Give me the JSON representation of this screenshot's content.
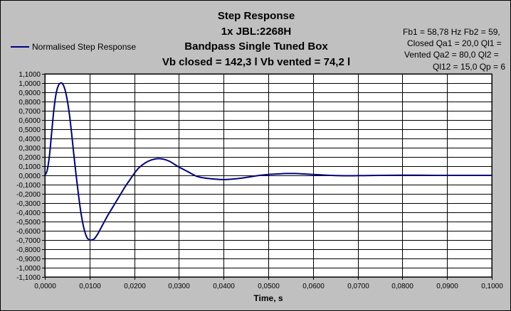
{
  "title": {
    "line1": "Step Response",
    "line2": "1x JBL:2268H",
    "line3": "Bandpass Single Tuned Box",
    "line4": "Vb closed = 142,3 l     Vb vented = 74,2 l"
  },
  "params": {
    "line1": "Fb1 = 58,78 Hz   Fb2 = 59,",
    "line2": "Closed Qa1 = 20,0   Ql1 =",
    "line3": "Vented Qa2 = 80,0   Ql2 =",
    "line4": "Ql12 = 15,0   Qp = 6"
  },
  "colors": {
    "series": "#000080",
    "background": "#c0c0c0",
    "plot_area": "#ffffff",
    "grid": "#000000"
  },
  "chart_data": {
    "type": "line",
    "xlabel": "Time, s",
    "ylabel": "",
    "xlim": [
      0,
      0.1
    ],
    "ylim": [
      -1.1,
      1.1
    ],
    "grid": true,
    "legend_position": "top-left",
    "x_ticks": [
      "0,0000",
      "0,0100",
      "0,0200",
      "0,0300",
      "0,0400",
      "0,0500",
      "0,0600",
      "0,0700",
      "0,0800",
      "0,0900",
      "0,1000"
    ],
    "y_ticks": [
      "1,1000",
      "1,0000",
      "0,9000",
      "0,8000",
      "0,7000",
      "0,6000",
      "0,5000",
      "0,4000",
      "0,3000",
      "0,2000",
      "0,1000",
      "0,0000",
      "-0,1000",
      "-0,2000",
      "-0,3000",
      "-0,4000",
      "-0,5000",
      "-0,6000",
      "-0,7000",
      "-0,8000",
      "-0,9000",
      "-1,0000",
      "-1,1000"
    ],
    "series": [
      {
        "name": "Normalised Step Response",
        "x": [
          0,
          0.0005,
          0.001,
          0.0015,
          0.002,
          0.0025,
          0.003,
          0.0035,
          0.004,
          0.0045,
          0.005,
          0.0055,
          0.006,
          0.0065,
          0.007,
          0.0075,
          0.008,
          0.0085,
          0.009,
          0.0095,
          0.01,
          0.0105,
          0.011,
          0.0115,
          0.012,
          0.013,
          0.014,
          0.015,
          0.016,
          0.017,
          0.018,
          0.019,
          0.02,
          0.021,
          0.022,
          0.023,
          0.024,
          0.025,
          0.026,
          0.027,
          0.028,
          0.029,
          0.03,
          0.032,
          0.034,
          0.036,
          0.038,
          0.04,
          0.042,
          0.044,
          0.046,
          0.048,
          0.05,
          0.052,
          0.054,
          0.056,
          0.058,
          0.06,
          0.062,
          0.064,
          0.066,
          0.068,
          0.07,
          0.075,
          0.08,
          0.085,
          0.09,
          0.095,
          0.1
        ],
        "values": [
          0,
          0.05,
          0.2,
          0.45,
          0.7,
          0.88,
          0.97,
          1.0,
          0.99,
          0.93,
          0.82,
          0.66,
          0.45,
          0.22,
          0.0,
          -0.2,
          -0.38,
          -0.52,
          -0.62,
          -0.68,
          -0.7,
          -0.7,
          -0.69,
          -0.66,
          -0.62,
          -0.53,
          -0.44,
          -0.36,
          -0.28,
          -0.2,
          -0.12,
          -0.05,
          0.02,
          0.08,
          0.12,
          0.15,
          0.17,
          0.18,
          0.18,
          0.17,
          0.15,
          0.12,
          0.09,
          0.04,
          -0.01,
          -0.03,
          -0.04,
          -0.045,
          -0.04,
          -0.03,
          -0.015,
          0.0,
          0.01,
          0.015,
          0.02,
          0.02,
          0.015,
          0.01,
          0.005,
          0.0,
          -0.003,
          -0.004,
          -0.003,
          0.0,
          0.002,
          0.001,
          0.0,
          0.0,
          0.0
        ]
      }
    ]
  }
}
